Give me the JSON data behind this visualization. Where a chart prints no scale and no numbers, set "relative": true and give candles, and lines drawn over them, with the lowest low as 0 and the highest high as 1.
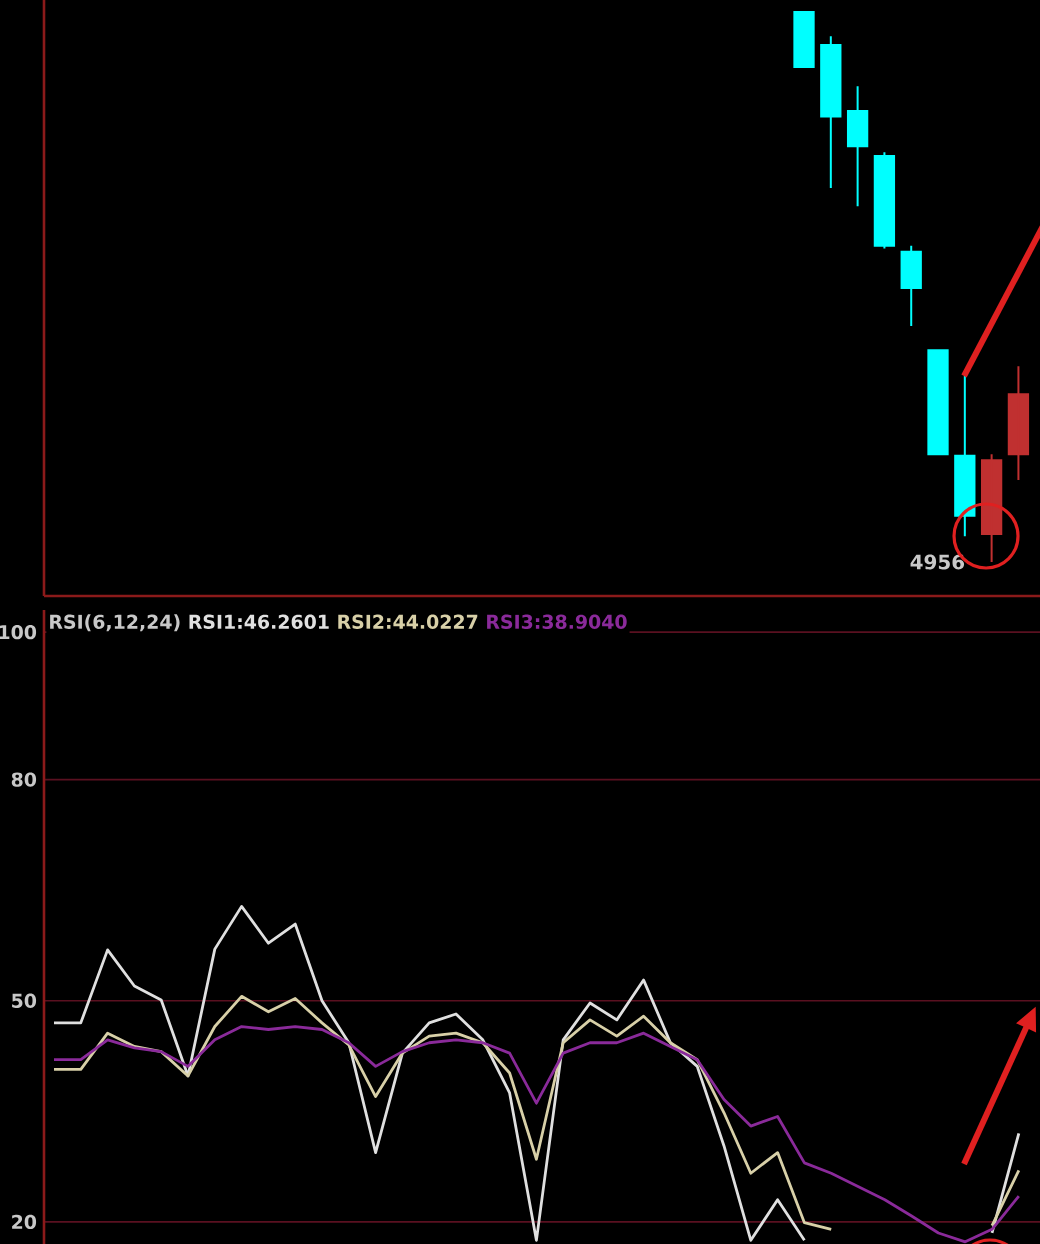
{
  "chart_data": [
    {
      "type": "candlestick",
      "relative": true,
      "tick_labels": false,
      "categories": [
        null,
        null,
        null,
        null,
        null,
        null,
        null,
        null,
        null
      ],
      "ohlc": [
        [
          1.0,
          1.0,
          0.9,
          0.9
        ],
        [
          0.94,
          0.956,
          0.68,
          0.81
        ],
        [
          0.82,
          0.865,
          0.647,
          0.756
        ],
        [
          0.738,
          0.745,
          0.57,
          0.575
        ],
        [
          0.564,
          0.575,
          0.429,
          0.498
        ],
        [
          0.385,
          0.385,
          0.196,
          0.196
        ],
        [
          0.193,
          0.338,
          0.047,
          0.084
        ],
        [
          0.051,
          0.196,
          0.0,
          0.185
        ],
        [
          0.196,
          0.356,
          0.149,
          0.305
        ]
      ],
      "colors": [
        "#00ffff",
        "#00ffff",
        "#00ffff",
        "#00ffff",
        "#00ffff",
        "#00ffff",
        "#00ffff",
        "#c03030",
        "#c03030"
      ],
      "annotations": [
        "4956"
      ]
    },
    {
      "type": "line",
      "legend": "top left",
      "legend_title": "RSI(6,12,24)",
      "grid": "y",
      "tick_labels": "y",
      "ylim": [
        17,
        103
      ],
      "yticks": [
        100,
        80,
        50,
        20
      ],
      "categories": [
        null,
        null,
        null,
        null,
        null,
        null,
        null,
        null,
        null,
        null,
        null,
        null,
        null,
        null,
        null,
        null,
        null,
        null,
        null,
        null,
        null,
        null,
        null,
        null,
        null,
        null,
        null,
        null,
        null,
        null,
        null,
        null,
        null,
        null,
        null,
        null,
        null
      ],
      "series": [
        {
          "name": "RSI1:46.2601",
          "color": "#e0e0e0",
          "values": [
            47,
            47,
            56.9,
            52,
            50.1,
            39.8,
            57,
            62.8,
            57.8,
            60.4,
            50,
            44.3,
            29.4,
            42.9,
            47,
            48.2,
            44.7,
            37.5,
            17.5,
            44.7,
            49.7,
            47.4,
            52.8,
            44.3,
            41.1,
            30.3,
            17.5,
            23,
            17.5,
            null,
            null,
            null,
            null,
            null,
            null,
            18.5,
            32
          ]
        },
        {
          "name": "RSI2:44.0227",
          "color": "#d8d0a8",
          "values": [
            40.7,
            40.7,
            45.6,
            43.8,
            43.1,
            39.8,
            46.5,
            50.6,
            48.5,
            50.3,
            47,
            44,
            37,
            42.9,
            45.2,
            45.6,
            44.3,
            40.2,
            28.5,
            44.3,
            47.4,
            45.2,
            47.9,
            44.3,
            42,
            34.8,
            26.6,
            29.4,
            19.9,
            19,
            null,
            null,
            null,
            null,
            null,
            19.5,
            27
          ]
        },
        {
          "name": "RSI3:38.9040",
          "color": "#8a2a9a",
          "values": [
            42,
            42,
            44.7,
            43.6,
            43.1,
            41.1,
            44.7,
            46.5,
            46.1,
            46.5,
            46.1,
            44.3,
            41.1,
            43.1,
            44.3,
            44.7,
            44.3,
            42.9,
            36.1,
            42.9,
            44.3,
            44.3,
            45.6,
            43.8,
            42,
            36.6,
            33,
            34.3,
            28,
            26.6,
            24.8,
            23,
            20.8,
            18.5,
            17.3,
            19,
            23.5
          ]
        }
      ]
    }
  ]
}
